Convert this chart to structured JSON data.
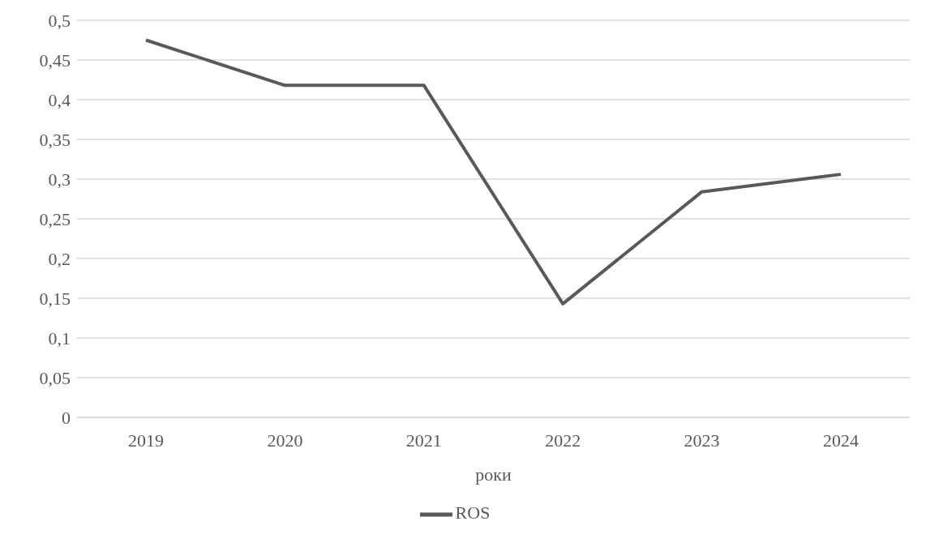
{
  "chart_data": {
    "type": "line",
    "xlabel": "роки",
    "categories": [
      "2019",
      "2020",
      "2021",
      "2022",
      "2023",
      "2024"
    ],
    "series": [
      {
        "name": "ROS",
        "color": "#595959",
        "values": [
          0.475,
          0.418,
          0.418,
          0.143,
          0.284,
          0.306
        ]
      }
    ],
    "ylim": [
      0,
      0.5
    ],
    "yticks": [
      0,
      {
        "value": 0.05,
        "label": "0,05"
      },
      {
        "value": 0.1,
        "label": "0,1"
      },
      {
        "value": 0.15,
        "label": "0,15"
      },
      {
        "value": 0.2,
        "label": "0,2"
      },
      {
        "value": 0.25,
        "label": "0,25"
      },
      {
        "value": 0.3,
        "label": "0,3"
      },
      {
        "value": 0.35,
        "label": "0,35"
      },
      {
        "value": 0.4,
        "label": "0,4"
      },
      {
        "value": 0.45,
        "label": "0,45"
      },
      {
        "value": 0.5,
        "label": "0,5"
      }
    ],
    "grid": "y",
    "legend": "bottom",
    "marker": "none",
    "line_style": "solid"
  }
}
